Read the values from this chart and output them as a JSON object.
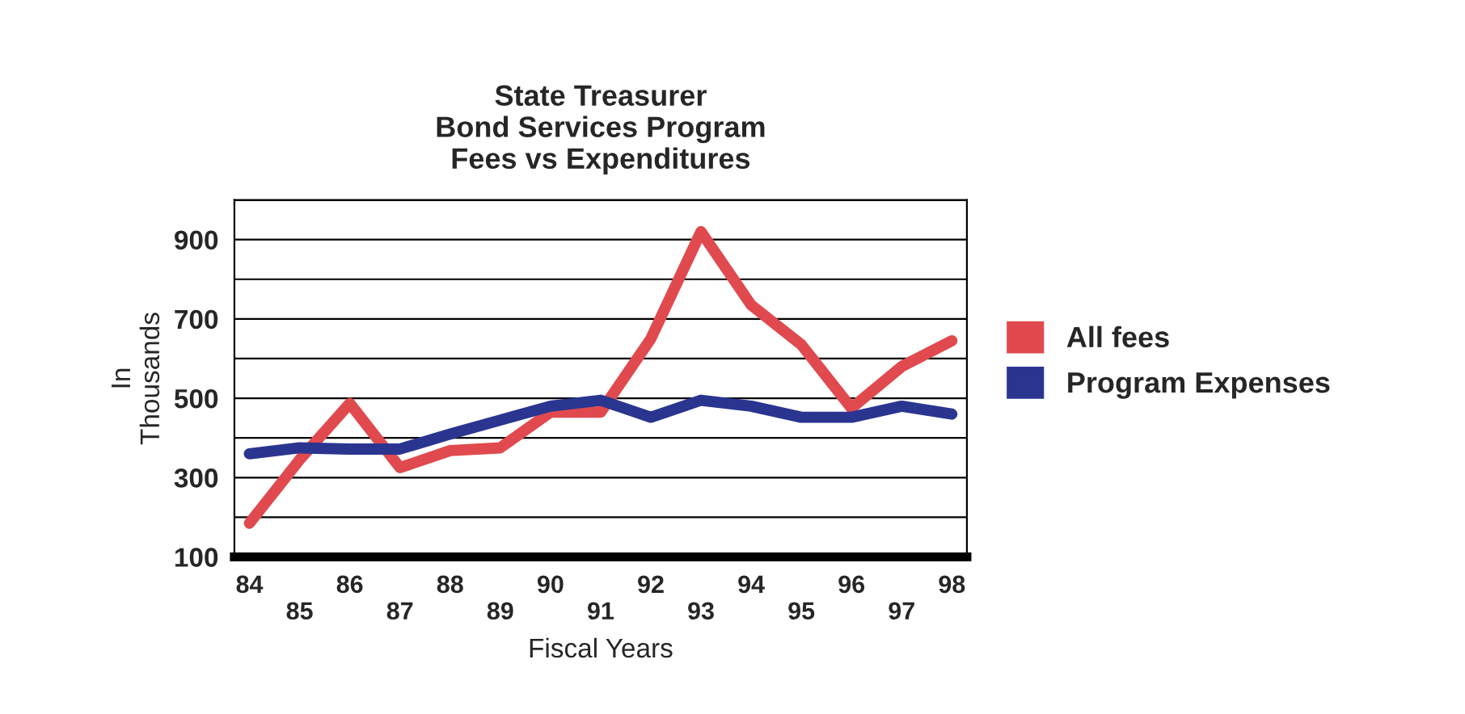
{
  "chart_data": {
    "type": "line",
    "title": "State Treasurer\nBond Services Program\nFees vs Expenditures",
    "xlabel": "Fiscal Years",
    "ylabel": "In\nThousands",
    "categories": [
      "84",
      "85",
      "86",
      "87",
      "88",
      "89",
      "90",
      "91",
      "92",
      "93",
      "94",
      "95",
      "96",
      "97",
      "98"
    ],
    "series": [
      {
        "name": "All fees",
        "color": "#e04a4e",
        "values": [
          185,
          345,
          487,
          325,
          368,
          375,
          465,
          465,
          650,
          920,
          735,
          635,
          475,
          580,
          645
        ]
      },
      {
        "name": "Program Expenses",
        "color": "#2a3590",
        "values": [
          360,
          375,
          372,
          372,
          410,
          445,
          480,
          495,
          452,
          495,
          480,
          452,
          452,
          480,
          460
        ]
      }
    ],
    "ylim": [
      100,
      1000
    ],
    "yticks": [
      100,
      {
        "value": 200,
        "label": null
      },
      300,
      {
        "value": 400,
        "label": null
      },
      500,
      {
        "value": 600,
        "label": null
      },
      700,
      {
        "value": 800,
        "label": null
      },
      900,
      {
        "value": 1000,
        "label": null
      }
    ],
    "grid": "y",
    "legend": "right",
    "line_style": "solid",
    "marker": "none"
  }
}
